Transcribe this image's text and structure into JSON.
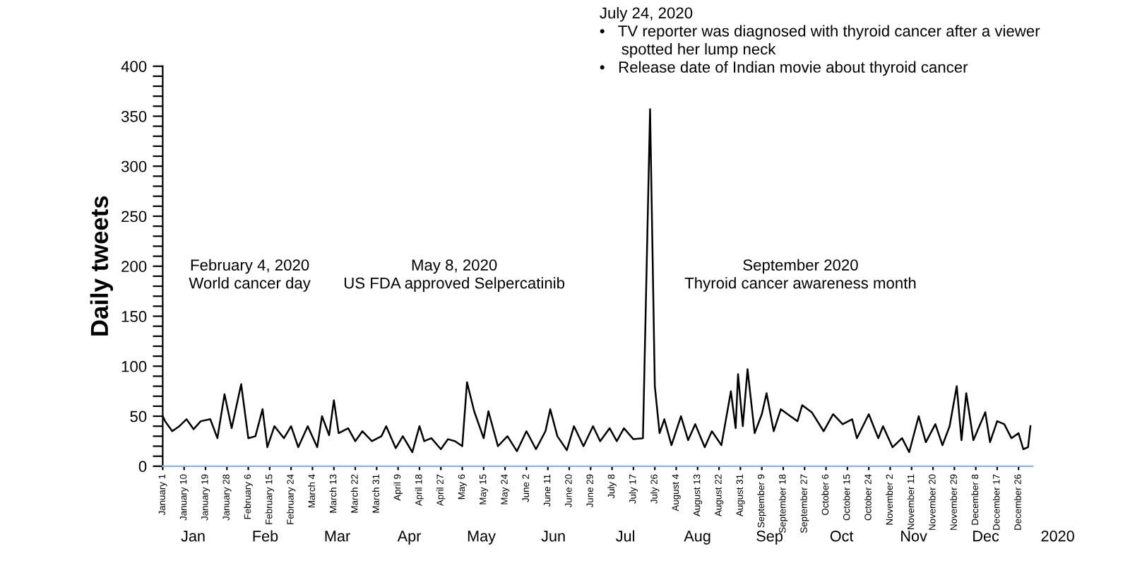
{
  "chart_data": {
    "type": "line",
    "ylabel": "Daily tweets",
    "x": [
      "2020-01-01",
      "2020-01-02",
      "2020-01-05",
      "2020-01-08",
      "2020-01-11",
      "2020-01-14",
      "2020-01-17",
      "2020-01-21",
      "2020-01-24",
      "2020-01-27",
      "2020-01-30",
      "2020-02-03",
      "2020-02-06",
      "2020-02-09",
      "2020-02-12",
      "2020-02-14",
      "2020-02-17",
      "2020-02-21",
      "2020-02-24",
      "2020-02-27",
      "2020-03-02",
      "2020-03-06",
      "2020-03-08",
      "2020-03-11",
      "2020-03-13",
      "2020-03-15",
      "2020-03-19",
      "2020-03-22",
      "2020-03-25",
      "2020-03-29",
      "2020-04-02",
      "2020-04-04",
      "2020-04-08",
      "2020-04-11",
      "2020-04-15",
      "2020-04-18",
      "2020-04-20",
      "2020-04-23",
      "2020-04-27",
      "2020-04-30",
      "2020-05-03",
      "2020-05-06",
      "2020-05-08",
      "2020-05-11",
      "2020-05-15",
      "2020-05-17",
      "2020-05-21",
      "2020-05-25",
      "2020-05-29",
      "2020-06-02",
      "2020-06-06",
      "2020-06-10",
      "2020-06-12",
      "2020-06-15",
      "2020-06-19",
      "2020-06-22",
      "2020-06-26",
      "2020-06-30",
      "2020-07-03",
      "2020-07-07",
      "2020-07-10",
      "2020-07-13",
      "2020-07-17",
      "2020-07-21",
      "2020-07-24",
      "2020-07-26",
      "2020-07-28",
      "2020-07-30",
      "2020-08-02",
      "2020-08-06",
      "2020-08-09",
      "2020-08-12",
      "2020-08-16",
      "2020-08-19",
      "2020-08-23",
      "2020-08-27",
      "2020-08-29",
      "2020-08-30",
      "2020-09-01",
      "2020-09-03",
      "2020-09-06",
      "2020-09-09",
      "2020-09-11",
      "2020-09-14",
      "2020-09-17",
      "2020-09-21",
      "2020-09-24",
      "2020-09-26",
      "2020-09-30",
      "2020-10-05",
      "2020-10-09",
      "2020-10-13",
      "2020-10-17",
      "2020-10-19",
      "2020-10-24",
      "2020-10-28",
      "2020-10-30",
      "2020-11-03",
      "2020-11-07",
      "2020-11-10",
      "2020-11-14",
      "2020-11-17",
      "2020-11-21",
      "2020-11-24",
      "2020-11-27",
      "2020-11-30",
      "2020-12-02",
      "2020-12-04",
      "2020-12-07",
      "2020-12-12",
      "2020-12-14",
      "2020-12-17",
      "2020-12-20",
      "2020-12-23",
      "2020-12-26",
      "2020-12-28",
      "2020-12-30",
      "2020-12-31"
    ],
    "series": [
      {
        "color": "#000000",
        "values": [
          50,
          45,
          35,
          40,
          47,
          37,
          45,
          47,
          28,
          72,
          38,
          82,
          28,
          30,
          57,
          19,
          40,
          28,
          40,
          19,
          40,
          19,
          50,
          31,
          66,
          33,
          38,
          25,
          35,
          25,
          30,
          40,
          18,
          30,
          14,
          40,
          25,
          28,
          17,
          27,
          25,
          20,
          84,
          55,
          28,
          55,
          20,
          30,
          15,
          35,
          17,
          35,
          57,
          30,
          16,
          40,
          20,
          40,
          25,
          38,
          25,
          38,
          27,
          28,
          357,
          80,
          33,
          47,
          21,
          50,
          26,
          42,
          19,
          35,
          21,
          75,
          38,
          92,
          40,
          97,
          33,
          52,
          73,
          35,
          57,
          50,
          45,
          61,
          54,
          35,
          52,
          42,
          47,
          28,
          52,
          28,
          40,
          19,
          28,
          14,
          50,
          24,
          42,
          21,
          40,
          80,
          26,
          73,
          26,
          54,
          24,
          45,
          42,
          28,
          33,
          17,
          19,
          40
        ]
      }
    ],
    "xlim": [
      "2020-01-01",
      "2021-01-01"
    ],
    "xticks": [
      {
        "value": "2020-01-01",
        "label": "January 1"
      },
      {
        "value": "2020-01-10",
        "label": "January 10"
      },
      {
        "value": "2020-01-19",
        "label": "January 19"
      },
      {
        "value": "2020-01-28",
        "label": "January 28"
      },
      {
        "value": "2020-02-06",
        "label": "February 6"
      },
      {
        "value": "2020-02-15",
        "label": "February 15"
      },
      {
        "value": "2020-02-24",
        "label": "February 24"
      },
      {
        "value": "2020-03-04",
        "label": "March 4"
      },
      {
        "value": "2020-03-13",
        "label": "March 13"
      },
      {
        "value": "2020-03-22",
        "label": "March 22"
      },
      {
        "value": "2020-03-31",
        "label": "March 31"
      },
      {
        "value": "2020-04-09",
        "label": "April 9"
      },
      {
        "value": "2020-04-18",
        "label": "April 18"
      },
      {
        "value": "2020-04-27",
        "label": "April 27"
      },
      {
        "value": "2020-05-06",
        "label": "May 6"
      },
      {
        "value": "2020-05-15",
        "label": "May 15"
      },
      {
        "value": "2020-05-24",
        "label": "May 24"
      },
      {
        "value": "2020-06-02",
        "label": "June 2"
      },
      {
        "value": "2020-06-11",
        "label": "June 11"
      },
      {
        "value": "2020-06-20",
        "label": "June 20"
      },
      {
        "value": "2020-06-29",
        "label": "June 29"
      },
      {
        "value": "2020-07-08",
        "label": "July 8"
      },
      {
        "value": "2020-07-17",
        "label": "July 17"
      },
      {
        "value": "2020-07-26",
        "label": "July 26"
      },
      {
        "value": "2020-08-04",
        "label": "August 4"
      },
      {
        "value": "2020-08-13",
        "label": "August 13"
      },
      {
        "value": "2020-08-22",
        "label": "August 22"
      },
      {
        "value": "2020-08-31",
        "label": "August 31"
      },
      {
        "value": "2020-09-09",
        "label": "September 9"
      },
      {
        "value": "2020-09-18",
        "label": "September 18"
      },
      {
        "value": "2020-09-27",
        "label": "September 27"
      },
      {
        "value": "2020-10-06",
        "label": "October 6"
      },
      {
        "value": "2020-10-15",
        "label": "October 15"
      },
      {
        "value": "2020-10-24",
        "label": "October 24"
      },
      {
        "value": "2020-11-02",
        "label": "November 2"
      },
      {
        "value": "2020-11-11",
        "label": "November 11"
      },
      {
        "value": "2020-11-20",
        "label": "November 20"
      },
      {
        "value": "2020-11-29",
        "label": "November 29"
      },
      {
        "value": "2020-12-08",
        "label": "December 8"
      },
      {
        "value": "2020-12-17",
        "label": "December 17"
      },
      {
        "value": "2020-12-26",
        "label": "December 26"
      }
    ],
    "ylim": [
      0,
      400
    ],
    "yticks": [
      0,
      {
        "value": 10,
        "label": null
      },
      {
        "value": 20,
        "label": null
      },
      {
        "value": 30,
        "label": null
      },
      {
        "value": 40,
        "label": null
      },
      50,
      {
        "value": 60,
        "label": null
      },
      {
        "value": 70,
        "label": null
      },
      {
        "value": 80,
        "label": null
      },
      {
        "value": 90,
        "label": null
      },
      100,
      {
        "value": 110,
        "label": null
      },
      {
        "value": 120,
        "label": null
      },
      {
        "value": 130,
        "label": null
      },
      {
        "value": 140,
        "label": null
      },
      150,
      {
        "value": 160,
        "label": null
      },
      {
        "value": 170,
        "label": null
      },
      {
        "value": 180,
        "label": null
      },
      {
        "value": 190,
        "label": null
      },
      200,
      {
        "value": 210,
        "label": null
      },
      {
        "value": 220,
        "label": null
      },
      {
        "value": 230,
        "label": null
      },
      {
        "value": 240,
        "label": null
      },
      250,
      {
        "value": 260,
        "label": null
      },
      {
        "value": 270,
        "label": null
      },
      {
        "value": 280,
        "label": null
      },
      {
        "value": 290,
        "label": null
      },
      300,
      {
        "value": 310,
        "label": null
      },
      {
        "value": 320,
        "label": null
      },
      {
        "value": 330,
        "label": null
      },
      {
        "value": 340,
        "label": null
      },
      350,
      {
        "value": 360,
        "label": null
      },
      {
        "value": 370,
        "label": null
      },
      {
        "value": 380,
        "label": null
      },
      {
        "value": 390,
        "label": null
      },
      400
    ],
    "grid": false,
    "legend": false,
    "marker": "none",
    "line_style": "solid",
    "annotations": [
      "February 4, 2020\nWorld cancer day",
      "May 8, 2020\nUS FDA approved Selpercatinib",
      "July 24, 2020\n•   TV reporter was diagnosed with thyroid cancer after a viewer\n     spotted her lump neck\n•   Release date of Indian movie about thyroid cancer",
      "September 2020\nThyroid cancer awareness month",
      "Jan",
      "Feb",
      "Mar",
      "Apr",
      "May",
      "Jun",
      "Jul",
      "Aug",
      "Sep",
      "Oct",
      "Nov",
      "Dec",
      "2020"
    ]
  }
}
